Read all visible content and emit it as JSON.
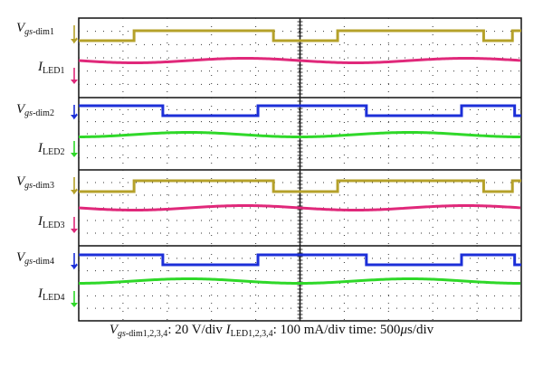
{
  "chart_data": {
    "type": "line",
    "title": "",
    "time_per_div_us": 500,
    "divisions_x": 10,
    "colors": {
      "vgs": [
        "#b5a12a",
        "#1c2fd8",
        "#b5a12a",
        "#1c2fd8"
      ],
      "iled": [
        "#e0287a",
        "#2fd829",
        "#e0287a",
        "#2fd829"
      ]
    },
    "channels": [
      {
        "gate_label": {
          "sym": "V",
          "sub_italic": "gs",
          "sub_rest": "-dim1"
        },
        "led_label": {
          "sym": "I",
          "sub": "LED1"
        },
        "vgs_high_intervals_div": [
          [
            1.25,
            4.4
          ],
          [
            5.85,
            9.15
          ],
          [
            9.8,
            10
          ]
        ],
        "vgs_starts_high": false,
        "iled_shape": "sin",
        "iled_phase": 0
      },
      {
        "gate_label": {
          "sym": "V",
          "sub_italic": "gs",
          "sub_rest": "-dim2"
        },
        "led_label": {
          "sym": "I",
          "sub": "LED2"
        },
        "vgs_high_intervals_div": [
          [
            0,
            1.9
          ],
          [
            4.05,
            6.5
          ],
          [
            8.65,
            9.85
          ]
        ],
        "vgs_starts_high": true,
        "iled_shape": "sin",
        "iled_phase": 1.6
      },
      {
        "gate_label": {
          "sym": "V",
          "sub_italic": "gs",
          "sub_rest": "-dim3"
        },
        "led_label": {
          "sym": "I",
          "sub": "LED3"
        },
        "vgs_high_intervals_div": [
          [
            1.25,
            4.4
          ],
          [
            5.85,
            9.15
          ],
          [
            9.8,
            10
          ]
        ],
        "vgs_starts_high": false,
        "iled_shape": "sin",
        "iled_phase": 0
      },
      {
        "gate_label": {
          "sym": "V",
          "sub_italic": "gs",
          "sub_rest": "-dim4"
        },
        "led_label": {
          "sym": "I",
          "sub": "LED4"
        },
        "vgs_high_intervals_div": [
          [
            0,
            1.9
          ],
          [
            4.05,
            6.5
          ],
          [
            8.65,
            9.85
          ]
        ],
        "vgs_starts_high": true,
        "iled_shape": "sin",
        "iled_phase": 1.6
      }
    ],
    "scale_text": {
      "vgs_sub_italic": "gs",
      "vgs_sub_rest": "-dim1,2,3,4",
      "vgs_scale": ": 20 V/div ",
      "iled_sub": "LED1,2,3,4",
      "iled_scale": ": 100 mA/div time: 500",
      "mu": "μ",
      "unit_end": "s/div"
    }
  }
}
